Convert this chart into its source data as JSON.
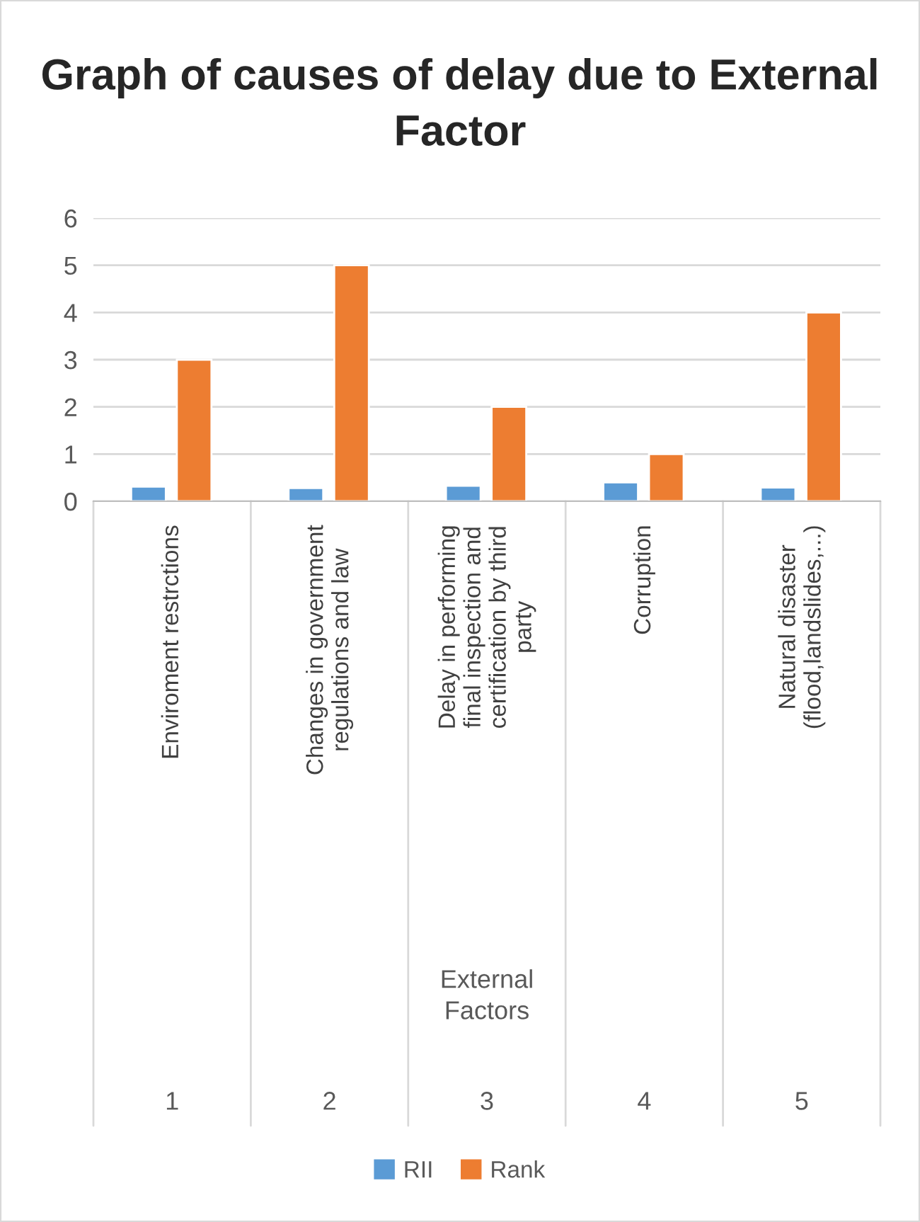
{
  "chart_data": {
    "type": "bar",
    "title": "Graph of causes of delay due to External Factor",
    "categories": [
      "Enviroment restrctions",
      "Changes in government regulations and law",
      "Delay in performing final inspection and certification by third party",
      "Corruption",
      "Natural disaster (flood,landslides,...)"
    ],
    "series": [
      {
        "name": "RII",
        "color": "#5b9bd5",
        "values": [
          0.31,
          0.28,
          0.33,
          0.4,
          0.29
        ]
      },
      {
        "name": "Rank",
        "color": "#ed7d31",
        "values": [
          3,
          5,
          2,
          1,
          4
        ]
      }
    ],
    "annotations": [
      "1",
      "2",
      "3",
      "4",
      "5",
      "External Factors"
    ],
    "ylim": [
      0,
      6
    ],
    "yticks": [
      0,
      1,
      2,
      3,
      4,
      5,
      6
    ],
    "grid": "y",
    "legend": "bottom"
  }
}
